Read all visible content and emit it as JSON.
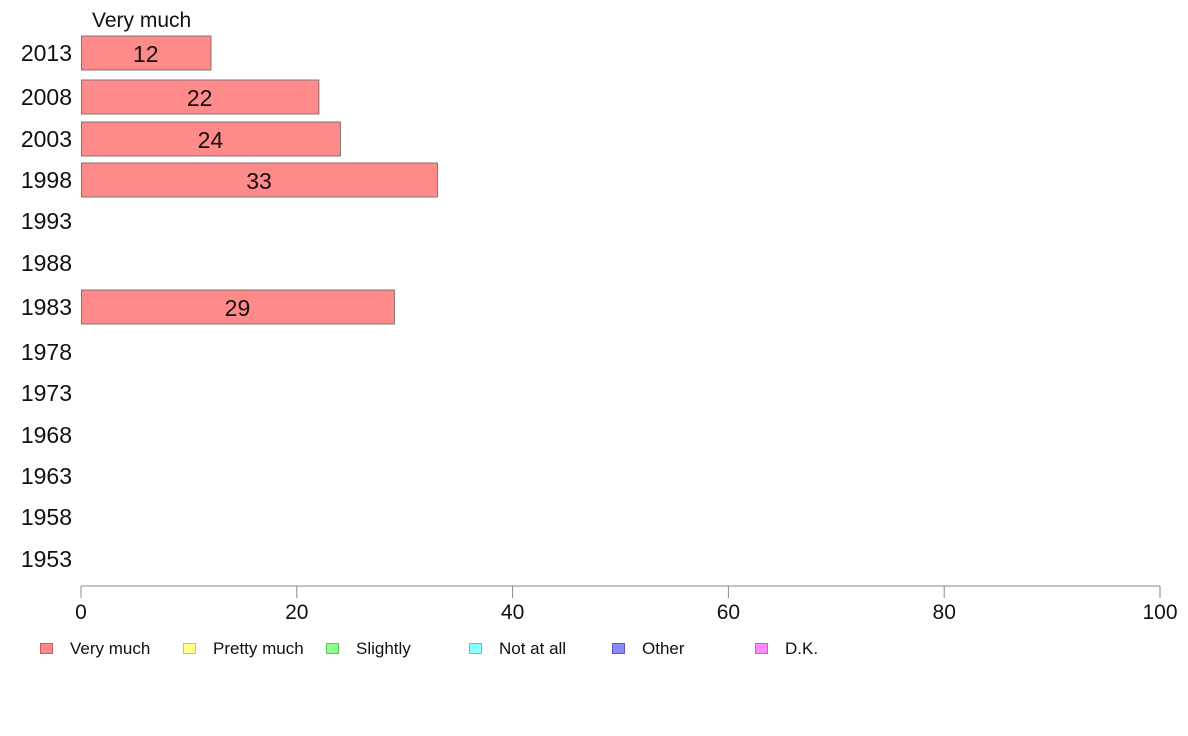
{
  "chart_data": {
    "type": "bar",
    "orientation": "horizontal",
    "series_header": "Very much",
    "categories": [
      "2013",
      "2008",
      "2003",
      "1998",
      "1993",
      "1988",
      "1983",
      "1978",
      "1973",
      "1968",
      "1963",
      "1958",
      "1953"
    ],
    "series": [
      {
        "name": "Very much",
        "color": "#ff8a8a",
        "values": [
          12,
          22,
          24,
          33,
          null,
          null,
          29,
          null,
          null,
          null,
          null,
          null,
          null
        ]
      }
    ],
    "data_labels": [
      "12",
      "22",
      "24",
      "33",
      "",
      "",
      "29",
      "",
      "",
      "",
      "",
      "",
      ""
    ],
    "xlim": [
      0,
      100
    ],
    "xticks": [
      0,
      20,
      40,
      60,
      80,
      100
    ],
    "xtick_labels": [
      "0",
      "20",
      "40",
      "60",
      "80",
      "100"
    ],
    "grid": false,
    "legend_position": "bottom",
    "legend": [
      {
        "label": "Very much",
        "color": "#ff8a8a",
        "border": "#cc5c5c"
      },
      {
        "label": "Pretty much",
        "color": "#ffff8a",
        "border": "#c8c85a"
      },
      {
        "label": "Slightly",
        "color": "#8aff8a",
        "border": "#5cc85c"
      },
      {
        "label": "Not at all",
        "color": "#8affff",
        "border": "#5cc8c8"
      },
      {
        "label": "Other",
        "color": "#8a8aff",
        "border": "#5c5cc8"
      },
      {
        "label": "D.K.",
        "color": "#ff8aff",
        "border": "#c85cc8"
      }
    ]
  }
}
